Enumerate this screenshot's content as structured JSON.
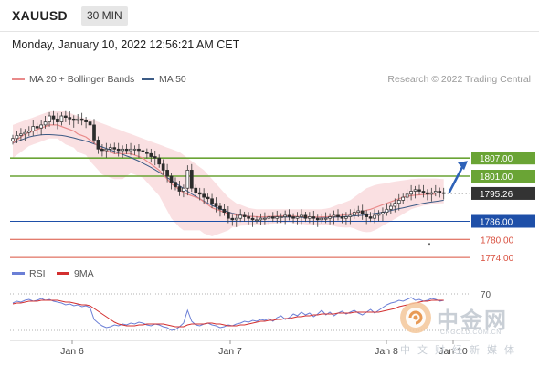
{
  "header": {
    "symbol": "XAUUSD",
    "timeframe": "30 MIN",
    "datetime": "Monday, January 10, 2022 12:56:21 AM CET",
    "credit": "Research © 2022 Trading Central"
  },
  "legend": {
    "ma20": "MA 20 + Bollinger Bands",
    "ma50": "MA 50",
    "rsi": "RSI",
    "ma9": "9MA"
  },
  "colors": {
    "ma20": "#e98a8a",
    "bands": "#f9dadd",
    "ma50": "#3c5b86",
    "resistance": "#6aa435",
    "pivot": "#1e4fa8",
    "support": "#d9503f",
    "current": "#333333",
    "rsi": "#6b7fd6",
    "ma9": "#d32f2f",
    "arrow": "#2e62b8"
  },
  "watermark": {
    "name": "中金网",
    "url": "CNGOLD.COM.CN",
    "sub": "中文财经新媒体"
  },
  "chart_data": [
    {
      "type": "candlestick",
      "title": "",
      "ylim": [
        1770,
        1825
      ],
      "x_ticks": [
        "Jan 6",
        "Jan 7",
        "Jan 8",
        "Jan 10"
      ],
      "levels": [
        {
          "label": "1807.00",
          "value": 1807.0,
          "kind": "resistance"
        },
        {
          "label": "1801.00",
          "value": 1801.0,
          "kind": "resistance"
        },
        {
          "label": "1795.26",
          "value": 1795.26,
          "kind": "current"
        },
        {
          "label": "1786.00",
          "value": 1786.0,
          "kind": "pivot"
        },
        {
          "label": "1780.00",
          "value": 1780.0,
          "kind": "support"
        },
        {
          "label": "1774.00",
          "value": 1774.0,
          "kind": "support"
        }
      ],
      "close": [
        1813.5,
        1814.5,
        1815,
        1815.5,
        1816,
        1817.5,
        1817,
        1818,
        1819,
        1821,
        1820,
        1819,
        1821,
        1820.5,
        1820,
        1819.5,
        1820,
        1819.5,
        1819,
        1818,
        1813,
        1810,
        1809.5,
        1810,
        1810.5,
        1810,
        1809.5,
        1810,
        1809.5,
        1810,
        1810,
        1809.5,
        1809,
        1808.5,
        1807.5,
        1807,
        1805,
        1803,
        1801,
        1799,
        1797.5,
        1796,
        1797,
        1803,
        1797,
        1795.5,
        1795,
        1794,
        1793.5,
        1792,
        1791,
        1790,
        1789,
        1787,
        1786.5,
        1787,
        1788,
        1787.5,
        1787,
        1786.5,
        1786.5,
        1787,
        1787,
        1787.5,
        1787,
        1787.5,
        1787.5,
        1788,
        1787.5,
        1787,
        1787.5,
        1788,
        1787,
        1787.5,
        1787,
        1786.5,
        1787,
        1787,
        1787.5,
        1788,
        1787.5,
        1787,
        1787.5,
        1788,
        1789,
        1789.5,
        1788.5,
        1787.5,
        1787,
        1788,
        1788.5,
        1789,
        1790,
        1791,
        1792,
        1793,
        1794,
        1795,
        1796,
        1796.5,
        1796,
        1795.5,
        1795,
        1795.5,
        1796,
        1795.5,
        1795.26
      ],
      "ma20": [
        1812,
        1813,
        1814,
        1815,
        1815.5,
        1816,
        1816.5,
        1817,
        1817.5,
        1818,
        1818,
        1818,
        1817.5,
        1817,
        1816.5,
        1816,
        1815,
        1814.5,
        1814,
        1813,
        1812,
        1811,
        1810,
        1809.5,
        1809,
        1808.5,
        1808.5,
        1808.5,
        1808.5,
        1808.5,
        1808,
        1807.5,
        1807,
        1806,
        1805,
        1804,
        1803,
        1801.5,
        1800,
        1798.5,
        1797.5,
        1796.5,
        1795.5,
        1795,
        1794.5,
        1794,
        1793.5,
        1792.5,
        1791.5,
        1790.5,
        1790,
        1789.5,
        1789,
        1788.5,
        1788.5,
        1788,
        1788,
        1787.8,
        1787.6,
        1787.6,
        1787.5,
        1787.5,
        1787.5,
        1787.6,
        1787.6,
        1787.7,
        1787.7,
        1787.8,
        1787.8,
        1787.7,
        1787.6,
        1787.6,
        1787.5,
        1787.4,
        1787.4,
        1787.4,
        1787.5,
        1787.5,
        1787.6,
        1787.7,
        1787.8,
        1788,
        1788.2,
        1788.5,
        1788.8,
        1789,
        1789.3,
        1789.7,
        1790,
        1790.5,
        1791,
        1791.5,
        1792,
        1792.5,
        1793,
        1793.5,
        1794,
        1794.3,
        1794.5,
        1794.7,
        1794.8,
        1794.9,
        1795,
        1795,
        1795
      ],
      "ma50": [
        1812,
        1812.5,
        1813,
        1813.5,
        1814,
        1814.3,
        1814.5,
        1814.7,
        1814.8,
        1814.8,
        1814.7,
        1814.6,
        1814.5,
        1814.3,
        1814,
        1813.7,
        1813.3,
        1813,
        1812.6,
        1812.2,
        1811.7,
        1811.2,
        1810.7,
        1810.2,
        1809.7,
        1809.2,
        1808.7,
        1808.2,
        1807.7,
        1807.2,
        1806.6,
        1806,
        1805.3,
        1804.6,
        1803.9,
        1803.1,
        1802.3,
        1801.4,
        1800.5,
        1799.6,
        1798.7,
        1797.8,
        1796.9,
        1796,
        1795.1,
        1794.3,
        1793.5,
        1792.7,
        1792,
        1791.3,
        1790.7,
        1790.1,
        1789.6,
        1789.1,
        1788.7,
        1788.4,
        1788.1,
        1787.9,
        1787.7,
        1787.6,
        1787.5,
        1787.4,
        1787.4,
        1787.4,
        1787.4,
        1787.4,
        1787.4,
        1787.4,
        1787.4,
        1787.4,
        1787.4,
        1787.3,
        1787.3,
        1787.3,
        1787.3,
        1787.3,
        1787.3,
        1787.3,
        1787.3,
        1787.4,
        1787.4,
        1787.5,
        1787.6,
        1787.7,
        1787.8,
        1787.9,
        1788,
        1788.2,
        1788.4,
        1788.6,
        1788.8,
        1789,
        1789.3,
        1789.6,
        1789.9,
        1790.2,
        1790.5,
        1790.8,
        1791.1,
        1791.4,
        1791.7,
        1792,
        1792.2,
        1792.4,
        1792.6,
        1792.8,
        1793
      ],
      "bb_upper": [
        1818,
        1818.5,
        1819,
        1819.5,
        1820,
        1820.5,
        1821,
        1821.5,
        1822,
        1822.5,
        1822.5,
        1822.5,
        1822.5,
        1822.5,
        1822,
        1821.5,
        1821,
        1820.5,
        1820,
        1820,
        1819.5,
        1819,
        1818.5,
        1818,
        1817.5,
        1817,
        1816.5,
        1816,
        1815.5,
        1815,
        1814.5,
        1814,
        1813.5,
        1813,
        1812.5,
        1812,
        1811.5,
        1811,
        1810.5,
        1810,
        1809.5,
        1809,
        1808,
        1807,
        1806,
        1805,
        1804,
        1803,
        1801.5,
        1800,
        1798.5,
        1797,
        1795.5,
        1794,
        1793,
        1792,
        1791.5,
        1791,
        1790.5,
        1790.2,
        1790,
        1790,
        1790,
        1790,
        1790,
        1790,
        1790,
        1790,
        1790,
        1790,
        1790,
        1790,
        1790,
        1790,
        1790,
        1790,
        1790,
        1790.2,
        1790.5,
        1791,
        1791.5,
        1792,
        1792.5,
        1793,
        1794,
        1795,
        1796,
        1797,
        1797.5,
        1798,
        1798.3,
        1798.5,
        1798.7,
        1799,
        1799.2,
        1799.4,
        1799.6,
        1799.8,
        1800,
        1800.1,
        1800.2,
        1800.2,
        1800.2,
        1800.2,
        1800.2,
        1800.1,
        1800
      ],
      "bb_lower": [
        1807,
        1808,
        1809,
        1810,
        1811,
        1811.5,
        1812,
        1812.5,
        1813,
        1813.5,
        1813.5,
        1813.5,
        1812.5,
        1811.5,
        1811,
        1810.5,
        1809,
        1808.5,
        1808,
        1806,
        1804.5,
        1803,
        1801.5,
        1801,
        1800.5,
        1800,
        1800,
        1800,
        1801,
        1802,
        1801.5,
        1801,
        1800.5,
        1799,
        1797.5,
        1796,
        1794.5,
        1792,
        1789.5,
        1787,
        1785.5,
        1784,
        1783,
        1783,
        1783,
        1783,
        1783,
        1782,
        1781.5,
        1781,
        1781.5,
        1782,
        1782.5,
        1783,
        1784,
        1784,
        1784.5,
        1784.6,
        1784.7,
        1785,
        1785,
        1785,
        1785,
        1785.2,
        1785.2,
        1785.4,
        1785.4,
        1785.6,
        1785.6,
        1785.4,
        1785.2,
        1785.2,
        1785,
        1784.8,
        1784.8,
        1784.8,
        1785,
        1784.8,
        1784.7,
        1784.4,
        1784.1,
        1784,
        1783.9,
        1784,
        1783.6,
        1783,
        1782.6,
        1782.4,
        1782.5,
        1783,
        1783.7,
        1784.5,
        1785.3,
        1786,
        1786.8,
        1787.6,
        1788.4,
        1789.2,
        1790,
        1790.5,
        1790.8,
        1791.2,
        1791.4,
        1791.6,
        1791.8,
        1792,
        1792
      ]
    },
    {
      "type": "line",
      "title": "",
      "ylim": [
        20,
        80
      ],
      "y_ticks": [
        70
      ],
      "series": [
        {
          "name": "RSI",
          "values": [
            60,
            62,
            61,
            63,
            64,
            62,
            63,
            65,
            63,
            64,
            62,
            61,
            60,
            58,
            59,
            57,
            58,
            56,
            57,
            55,
            42,
            38,
            35,
            33,
            34,
            36,
            35,
            37,
            36,
            38,
            37,
            39,
            38,
            36,
            35,
            37,
            36,
            34,
            33,
            30,
            31,
            34,
            38,
            52,
            40,
            36,
            35,
            37,
            38,
            36,
            35,
            33,
            34,
            36,
            35,
            37,
            38,
            40,
            39,
            41,
            40,
            42,
            41,
            43,
            40,
            44,
            46,
            42,
            44,
            48,
            46,
            50,
            47,
            49,
            45,
            48,
            52,
            47,
            50,
            46,
            49,
            51,
            48,
            50,
            52,
            49,
            47,
            50,
            53,
            49,
            52,
            55,
            58,
            60,
            61,
            63,
            62,
            64,
            66,
            63,
            64,
            62,
            63,
            65,
            64,
            62,
            63
          ]
        },
        {
          "name": "9MA",
          "values": [
            59,
            60,
            60,
            61,
            62,
            62,
            62,
            63,
            63,
            63,
            63,
            63,
            62,
            61,
            61,
            60,
            59,
            58,
            58,
            57,
            54,
            51,
            48,
            45,
            42,
            39,
            37,
            36,
            35,
            35,
            35,
            36,
            36,
            37,
            37,
            37,
            37,
            37,
            36,
            35,
            34,
            34,
            34,
            36,
            37,
            37,
            37,
            37,
            38,
            38,
            37,
            37,
            36,
            35,
            35,
            35,
            36,
            36,
            37,
            38,
            39,
            40,
            40,
            41,
            41,
            42,
            42,
            43,
            43,
            44,
            45,
            45,
            46,
            46,
            47,
            47,
            48,
            48,
            48,
            48,
            49,
            49,
            49,
            49,
            50,
            50,
            50,
            50,
            50,
            50,
            50,
            51,
            52,
            53,
            54,
            56,
            57,
            58,
            59,
            60,
            61,
            62,
            62,
            63,
            63,
            63,
            63
          ]
        }
      ]
    }
  ]
}
